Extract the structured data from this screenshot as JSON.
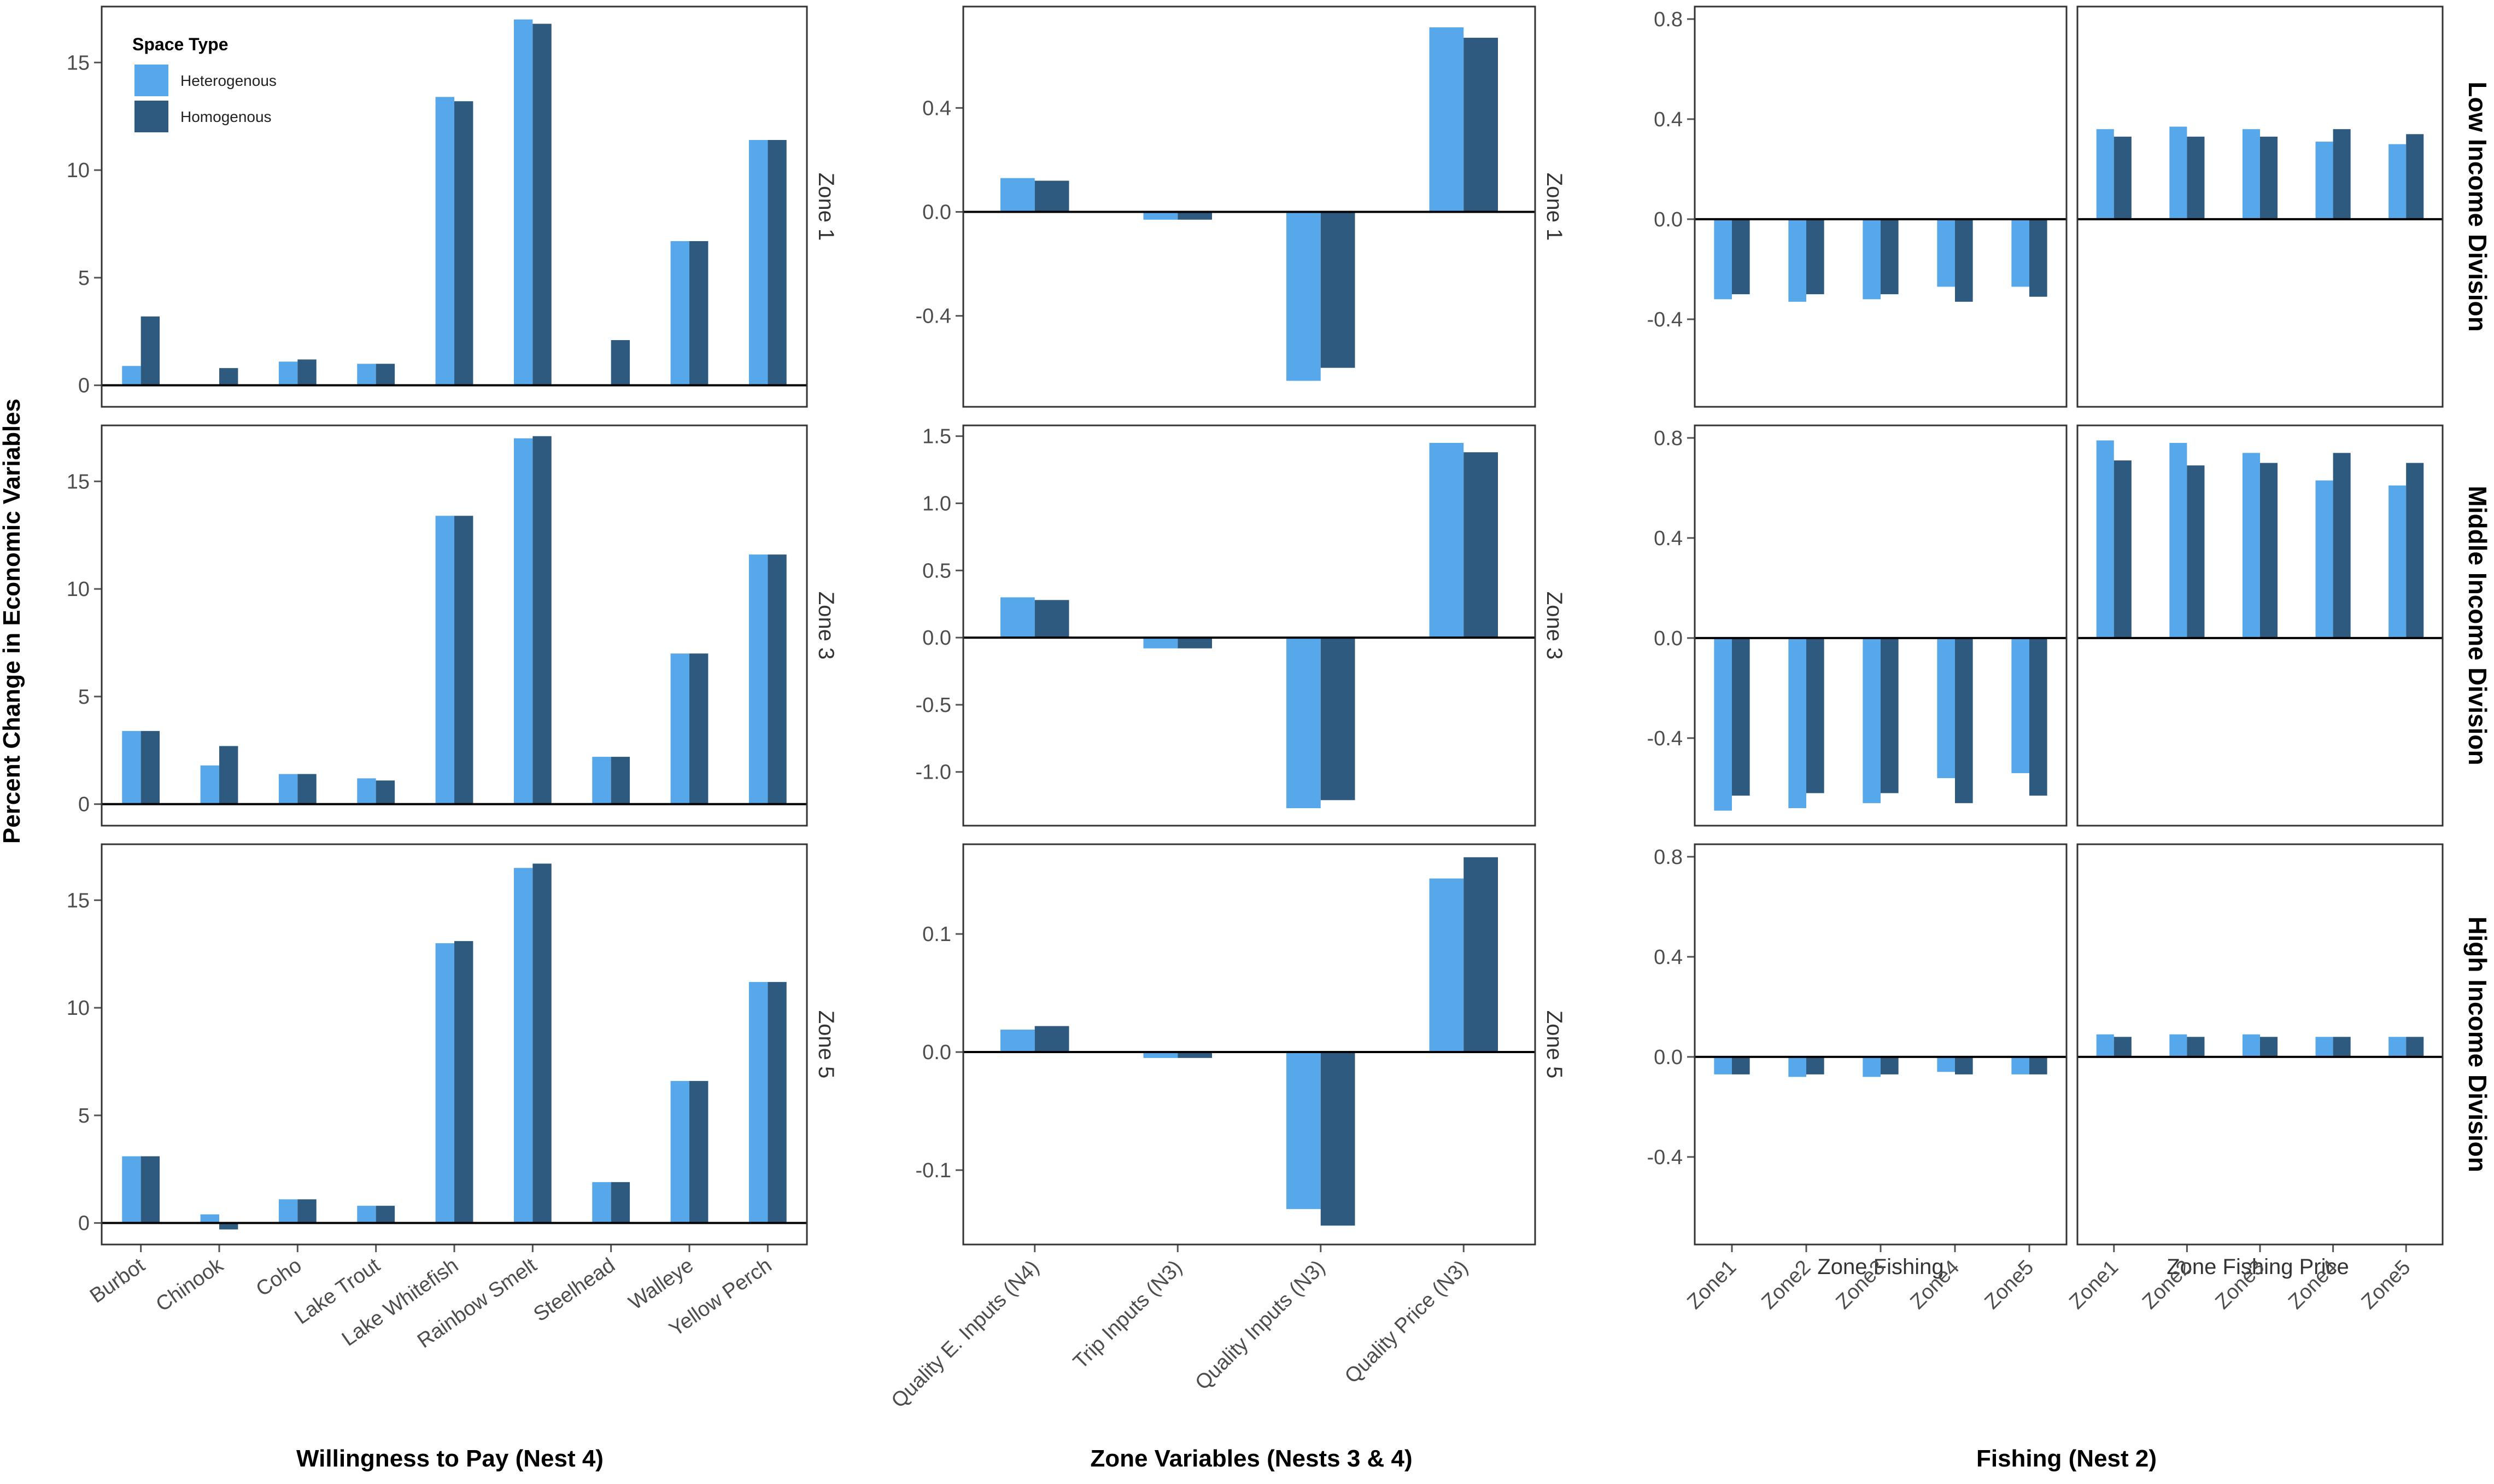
{
  "colors": {
    "heterogenous": "#56a8ea",
    "homogenous": "#2f5a80"
  },
  "y_axis_label": "Percent Change in Economic Variables",
  "legend": {
    "title": "Space Type",
    "items": [
      "Heterogenous",
      "Homogenous"
    ]
  },
  "columns": {
    "wtp": {
      "title": "Willingness to Pay (Nest 4)"
    },
    "zone_vars": {
      "title": "Zone Variables (Nests 3 & 4)"
    },
    "fishing": {
      "title": "Fishing (Nest 2)",
      "subpanels": [
        "Zone Fishing",
        "Zone Fishing Price"
      ]
    }
  },
  "zone_strips": [
    "Zone 1",
    "Zone 3",
    "Zone 5"
  ],
  "income_strips": [
    "Low Income Division",
    "Middle Income Division",
    "High Income Division"
  ],
  "chart_data": [
    {
      "id": "wtp",
      "type": "bar",
      "title": "Willingness to Pay (Nest 4)",
      "ylabel": "Percent Change in Economic Variables",
      "categories": [
        "Burbot",
        "Chinook",
        "Coho",
        "Lake Trout",
        "Lake Whitefish",
        "Rainbow Smelt",
        "Steelhead",
        "Walleye",
        "Yellow Perch"
      ],
      "yticks": [
        0,
        5,
        10,
        15
      ],
      "ylim": [
        -1,
        17.6
      ],
      "facets": [
        {
          "label": "Zone 1",
          "series": [
            {
              "name": "Heterogenous",
              "values": [
                0.9,
                0.0,
                1.1,
                1.0,
                13.4,
                17.0,
                0.0,
                6.7,
                11.4
              ]
            },
            {
              "name": "Homogenous",
              "values": [
                3.2,
                0.8,
                1.2,
                1.0,
                13.2,
                16.8,
                2.1,
                6.7,
                11.4
              ]
            }
          ]
        },
        {
          "label": "Zone 3",
          "series": [
            {
              "name": "Heterogenous",
              "values": [
                3.4,
                1.8,
                1.4,
                1.2,
                13.4,
                17.0,
                2.2,
                7.0,
                11.6
              ]
            },
            {
              "name": "Homogenous",
              "values": [
                3.4,
                2.7,
                1.4,
                1.1,
                13.4,
                17.1,
                2.2,
                7.0,
                11.6
              ]
            }
          ]
        },
        {
          "label": "Zone 5",
          "series": [
            {
              "name": "Heterogenous",
              "values": [
                3.1,
                0.4,
                1.1,
                0.8,
                13.0,
                16.5,
                1.9,
                6.6,
                11.2
              ]
            },
            {
              "name": "Homogenous",
              "values": [
                3.1,
                -0.3,
                1.1,
                0.8,
                13.1,
                16.7,
                1.9,
                6.6,
                11.2
              ]
            }
          ]
        }
      ]
    },
    {
      "id": "zone_vars",
      "type": "bar",
      "title": "Zone Variables (Nests 3 & 4)",
      "categories": [
        "Quality E. Inputs (N4)",
        "Trip Inputs (N3)",
        "Quality Inputs (N3)",
        "Quality Price (N3)"
      ],
      "facets": [
        {
          "label": "Zone 1",
          "ylim": [
            -0.75,
            0.79
          ],
          "yticks": [
            -0.4,
            0.0,
            0.4
          ],
          "series": [
            {
              "name": "Heterogenous",
              "values": [
                0.13,
                -0.03,
                -0.65,
                0.71
              ]
            },
            {
              "name": "Homogenous",
              "values": [
                0.12,
                -0.03,
                -0.6,
                0.67
              ]
            }
          ]
        },
        {
          "label": "Zone 3",
          "ylim": [
            -1.4,
            1.58
          ],
          "yticks": [
            -1.0,
            -0.5,
            0.0,
            0.5,
            1.0,
            1.5
          ],
          "series": [
            {
              "name": "Heterogenous",
              "values": [
                0.3,
                -0.08,
                -1.27,
                1.45
              ]
            },
            {
              "name": "Homogenous",
              "values": [
                0.28,
                -0.08,
                -1.21,
                1.38
              ]
            }
          ]
        },
        {
          "label": "Zone 5",
          "ylim": [
            -0.163,
            0.176
          ],
          "yticks": [
            -0.1,
            0.0,
            0.1
          ],
          "series": [
            {
              "name": "Heterogenous",
              "values": [
                0.019,
                -0.005,
                -0.133,
                0.147
              ]
            },
            {
              "name": "Homogenous",
              "values": [
                0.022,
                -0.005,
                -0.147,
                0.165
              ]
            }
          ]
        }
      ]
    },
    {
      "id": "fishing",
      "type": "bar",
      "title": "Fishing (Nest 2)",
      "categories": [
        "Zone1",
        "Zone2",
        "Zone3",
        "Zone4",
        "Zone5"
      ],
      "ylim": [
        -0.75,
        0.85
      ],
      "yticks": [
        -0.4,
        0.0,
        0.4,
        0.8
      ],
      "facets": [
        {
          "row": "Low Income Division",
          "panel": "Zone Fishing",
          "series": [
            {
              "name": "Heterogenous",
              "values": [
                -0.32,
                -0.33,
                -0.32,
                -0.27,
                -0.27
              ]
            },
            {
              "name": "Homogenous",
              "values": [
                -0.3,
                -0.3,
                -0.3,
                -0.33,
                -0.31
              ]
            }
          ]
        },
        {
          "row": "Low Income Division",
          "panel": "Zone Fishing Price",
          "series": [
            {
              "name": "Heterogenous",
              "values": [
                0.36,
                0.37,
                0.36,
                0.31,
                0.3
              ]
            },
            {
              "name": "Homogenous",
              "values": [
                0.33,
                0.33,
                0.33,
                0.36,
                0.34
              ]
            }
          ]
        },
        {
          "row": "Middle Income Division",
          "panel": "Zone Fishing",
          "series": [
            {
              "name": "Heterogenous",
              "values": [
                -0.69,
                -0.68,
                -0.66,
                -0.56,
                -0.54
              ]
            },
            {
              "name": "Homogenous",
              "values": [
                -0.63,
                -0.62,
                -0.62,
                -0.66,
                -0.63
              ]
            }
          ]
        },
        {
          "row": "Middle Income Division",
          "panel": "Zone Fishing Price",
          "series": [
            {
              "name": "Heterogenous",
              "values": [
                0.79,
                0.78,
                0.74,
                0.63,
                0.61
              ]
            },
            {
              "name": "Homogenous",
              "values": [
                0.71,
                0.69,
                0.7,
                0.74,
                0.7
              ]
            }
          ]
        },
        {
          "row": "High Income Division",
          "panel": "Zone Fishing",
          "series": [
            {
              "name": "Heterogenous",
              "values": [
                -0.07,
                -0.08,
                -0.08,
                -0.06,
                -0.07
              ]
            },
            {
              "name": "Homogenous",
              "values": [
                -0.07,
                -0.07,
                -0.07,
                -0.07,
                -0.07
              ]
            }
          ]
        },
        {
          "row": "High Income Division",
          "panel": "Zone Fishing Price",
          "series": [
            {
              "name": "Heterogenous",
              "values": [
                0.09,
                0.09,
                0.09,
                0.08,
                0.08
              ]
            },
            {
              "name": "Homogenous",
              "values": [
                0.08,
                0.08,
                0.08,
                0.08,
                0.08
              ]
            }
          ]
        }
      ]
    }
  ]
}
